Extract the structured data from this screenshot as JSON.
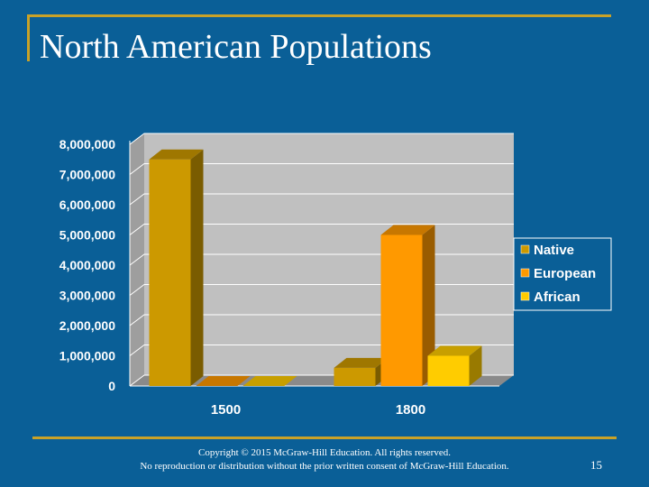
{
  "slide": {
    "title": "North American Populations",
    "copyright_line1": "Copyright © 2015 McGraw-Hill Education. All rights reserved.",
    "copyright_line2": "No reproduction or distribution without the prior written consent of McGraw-Hill Education.",
    "page_number": "15"
  },
  "chart_data": {
    "type": "bar",
    "title": "",
    "xlabel": "",
    "ylabel": "",
    "categories": [
      "1500",
      "1800"
    ],
    "series": [
      {
        "name": "Native",
        "values": [
          7500000,
          600000
        ],
        "color": "#cc9900"
      },
      {
        "name": "European",
        "values": [
          0,
          5000000
        ],
        "color": "#ff9900"
      },
      {
        "name": "African",
        "values": [
          0,
          1000000
        ],
        "color": "#ffcc00"
      }
    ],
    "ylim": [
      0,
      8000000
    ],
    "y_ticks": [
      "0",
      "1,000,000",
      "2,000,000",
      "3,000,000",
      "4,000,000",
      "5,000,000",
      "6,000,000",
      "7,000,000",
      "8,000,000"
    ],
    "grid": true,
    "legend_position": "right"
  }
}
